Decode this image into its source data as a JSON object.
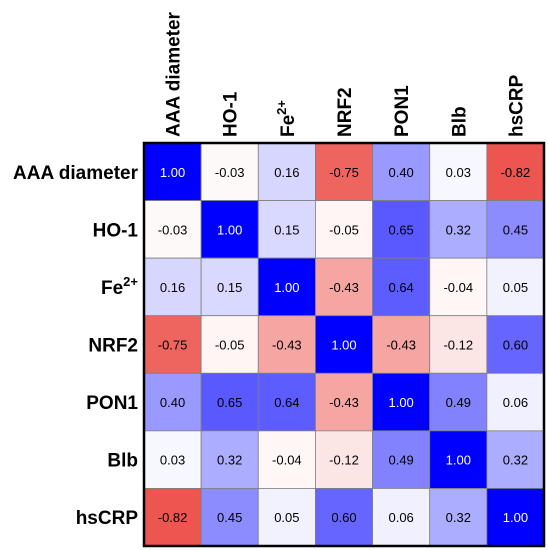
{
  "chart_data": {
    "type": "heatmap",
    "variables": [
      {
        "label": "AAA diameter"
      },
      {
        "label": "HO-1"
      },
      {
        "label": "Fe",
        "sup": "2+"
      },
      {
        "label": "NRF2"
      },
      {
        "label": "PON1"
      },
      {
        "label": "Blb"
      },
      {
        "label": "hsCRP"
      }
    ],
    "matrix": [
      [
        1.0,
        -0.03,
        0.16,
        -0.75,
        0.4,
        0.03,
        -0.82
      ],
      [
        -0.03,
        1.0,
        0.15,
        -0.05,
        0.65,
        0.32,
        0.45
      ],
      [
        0.16,
        0.15,
        1.0,
        -0.43,
        0.64,
        -0.04,
        0.05
      ],
      [
        -0.75,
        -0.05,
        -0.43,
        1.0,
        -0.43,
        -0.12,
        0.6
      ],
      [
        0.4,
        0.65,
        0.64,
        -0.43,
        1.0,
        0.49,
        0.06
      ],
      [
        0.03,
        0.32,
        -0.04,
        -0.12,
        0.49,
        1.0,
        0.32
      ],
      [
        -0.82,
        0.45,
        0.05,
        0.6,
        0.06,
        0.32,
        1.0
      ]
    ],
    "labels": [
      [
        "1.00",
        "-0.03",
        "0.16",
        "-0.75",
        "0.40",
        "0.03",
        "-0.82"
      ],
      [
        "-0.03",
        "1.00",
        "0.15",
        "-0.05",
        "0.65",
        "0.32",
        "0.45"
      ],
      [
        "0.16",
        "0.15",
        "1.00",
        "-0.43",
        "0.64",
        "-0.04",
        "0.05"
      ],
      [
        "-0.75",
        "-0.05",
        "-0.43",
        "1.00",
        "-0.43",
        "-0.12",
        "0.60"
      ],
      [
        "0.40",
        "0.65",
        "0.64",
        "-0.43",
        "1.00",
        "0.49",
        "0.06"
      ],
      [
        "0.03",
        "0.32",
        "-0.04",
        "-0.12",
        "0.49",
        "1.00",
        "0.32"
      ],
      [
        "-0.82",
        "0.45",
        "0.05",
        "0.60",
        "0.06",
        "0.32",
        "1.00"
      ]
    ],
    "color_scale": {
      "min": -1,
      "max": 1,
      "negative": "#e8302a",
      "neutral": "#ffffff",
      "positive": "#0000ff"
    },
    "legend": "none",
    "grid": true
  }
}
